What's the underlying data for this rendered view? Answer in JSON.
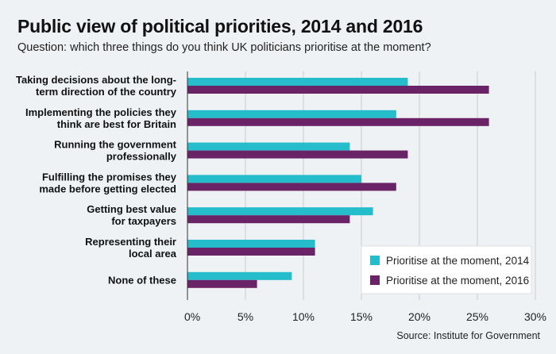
{
  "title": "Public view of political priorities, 2014 and 2016",
  "subtitle": "Question: which three things do you think UK politicians prioritise at the moment?",
  "source": "Source: Institute for Government",
  "colors": {
    "series_2014": "#25bccb",
    "series_2016": "#6b2367",
    "grid": "#c8ccd0",
    "background": "#eef2f4"
  },
  "chart_data": {
    "type": "bar",
    "orientation": "horizontal",
    "title": "Public view of political priorities, 2014 and 2016",
    "xlabel": "",
    "ylabel": "",
    "xlim": [
      0,
      30
    ],
    "ticks": [
      0,
      5,
      10,
      15,
      20,
      25,
      30
    ],
    "tick_labels": [
      "0%",
      "5%",
      "10%",
      "15%",
      "20%",
      "25%",
      "30%"
    ],
    "categories": [
      [
        "Taking decisions about the long-",
        "term direction of the country"
      ],
      [
        "Implementing the policies they",
        "think are best for Britain"
      ],
      [
        "Running the government",
        "professionally"
      ],
      [
        "Fulfilling the promises they",
        "made before getting elected"
      ],
      [
        "Getting best value",
        "for taxpayers"
      ],
      [
        "Representing their",
        "local area"
      ],
      [
        "None of these"
      ]
    ],
    "series": [
      {
        "name": "Prioritise at the moment, 2014",
        "values": [
          19,
          18,
          14,
          15,
          16,
          11,
          9
        ]
      },
      {
        "name": "Prioritise at the moment, 2016",
        "values": [
          26,
          26,
          19,
          18,
          14,
          11,
          6
        ]
      }
    ],
    "legend_position": "bottom-right",
    "grid": true
  }
}
